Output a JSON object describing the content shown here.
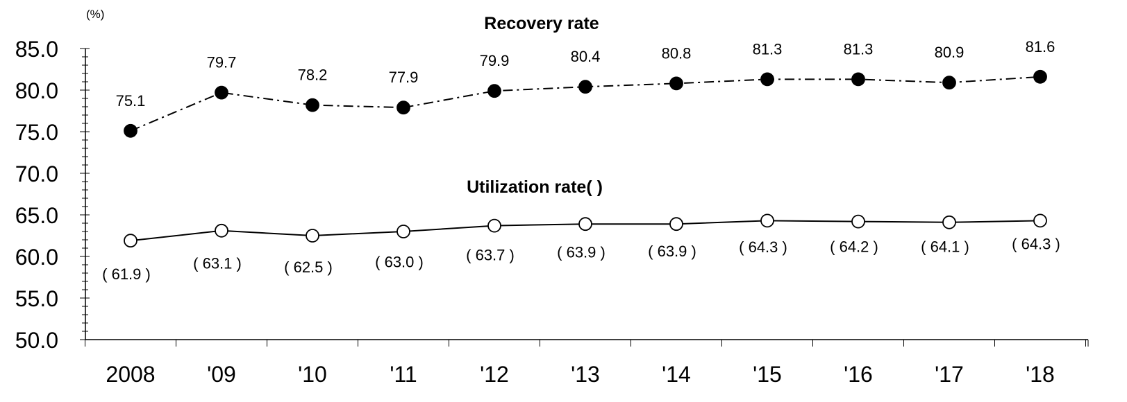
{
  "chart_data": {
    "type": "line",
    "unit_label": "(%)",
    "categories": [
      "2008",
      "'09",
      "'10",
      "'11",
      "'12",
      "'13",
      "'14",
      "'15",
      "'16",
      "'17",
      "'18"
    ],
    "ylim": [
      50.0,
      85.0
    ],
    "y_ticks": [
      "50.0",
      "55.0",
      "60.0",
      "65.0",
      "70.0",
      "75.0",
      "80.0",
      "85.0"
    ],
    "grid": false,
    "series": [
      {
        "name": "Recovery rate",
        "values": [
          75.1,
          79.7,
          78.2,
          77.9,
          79.9,
          80.4,
          80.8,
          81.3,
          81.3,
          80.9,
          81.6
        ],
        "labels": [
          "75.1",
          "79.7",
          "78.2",
          "77.9",
          "79.9",
          "80.4",
          "80.8",
          "81.3",
          "81.3",
          "80.9",
          "81.6"
        ],
        "line_style": "dash-dot",
        "marker": "filled-circle",
        "color": "#000000"
      },
      {
        "name": "Utilization rate( )",
        "values": [
          61.9,
          63.1,
          62.5,
          63.0,
          63.7,
          63.9,
          63.9,
          64.3,
          64.2,
          64.1,
          64.3
        ],
        "labels": [
          "( 61.9 )",
          "( 63.1 )",
          "( 62.5 )",
          "( 63.0 )",
          "( 63.7 )",
          "( 63.9 )",
          "( 63.9 )",
          "( 64.3 )",
          "( 64.2 )",
          "( 64.1 )",
          "( 64.3 )"
        ],
        "line_style": "solid",
        "marker": "open-circle",
        "color": "#000000"
      }
    ]
  }
}
